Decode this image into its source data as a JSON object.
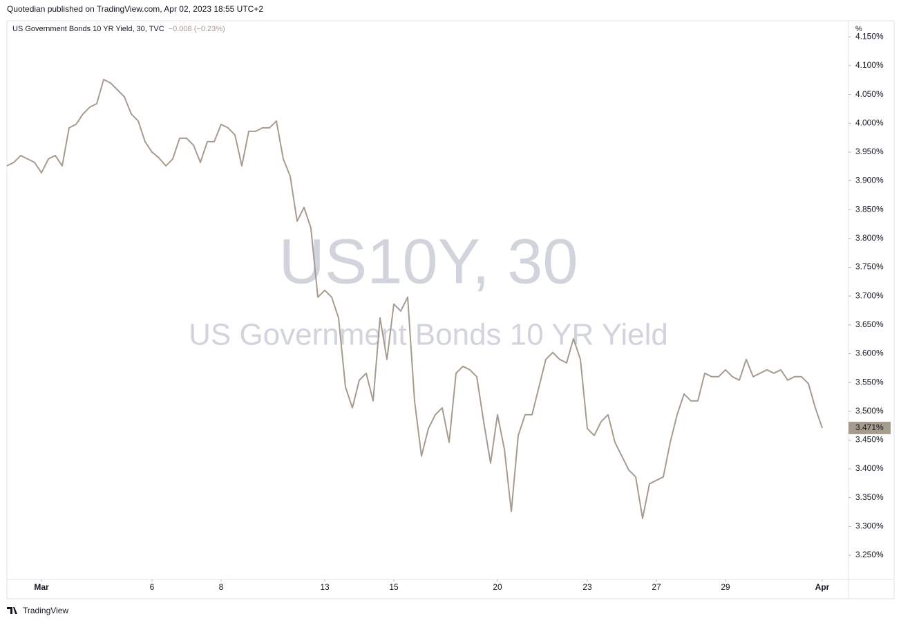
{
  "publisher_line": "Quotedian published on TradingView.com, Apr 02, 2023 18:55 UTC+2",
  "footer_brand": "TradingView",
  "chart_data": {
    "type": "line",
    "title": "US Government Bonds 10 YR Yield, 30, TVC",
    "change": "−0.008 (−0.23%)",
    "watermark_symbol": "US10Y, 30",
    "watermark_name": "US Government Bonds 10 YR Yield",
    "y_unit": "%",
    "last_value_label": "3.471%",
    "x": [
      0,
      1,
      2,
      3,
      4,
      5,
      6,
      7,
      8,
      9,
      10,
      11,
      12,
      13,
      14,
      15,
      16,
      17,
      18,
      19,
      20,
      21,
      22,
      23,
      24,
      25,
      26,
      27,
      28,
      29,
      30,
      31,
      32,
      33,
      34,
      35,
      36,
      37,
      38,
      39,
      40,
      41,
      42,
      43,
      44,
      45,
      46,
      47,
      48,
      49,
      50,
      51,
      52,
      53,
      54,
      55,
      56,
      57,
      58,
      59,
      60,
      61,
      62,
      63,
      64,
      65,
      66,
      67,
      68,
      69,
      70,
      71,
      72,
      73,
      74,
      75,
      76,
      77,
      78,
      79,
      80,
      81,
      82,
      83,
      84,
      85,
      86,
      87,
      88,
      89,
      90,
      91,
      92,
      93,
      94,
      95,
      96,
      97,
      98,
      99,
      100,
      101,
      102,
      103,
      104,
      105,
      106,
      107,
      108,
      109,
      110,
      111,
      112,
      113,
      114,
      115,
      116,
      117,
      118
    ],
    "series": [
      {
        "name": "US10Y",
        "color": "#a59b8f",
        "values": [
          3.926,
          3.932,
          3.944,
          3.938,
          3.932,
          3.914,
          3.938,
          3.944,
          3.926,
          3.992,
          3.998,
          4.016,
          4.028,
          4.034,
          4.076,
          4.07,
          4.058,
          4.046,
          4.016,
          4.004,
          3.968,
          3.95,
          3.94,
          3.926,
          3.938,
          3.974,
          3.974,
          3.962,
          3.932,
          3.968,
          3.968,
          3.998,
          3.992,
          3.98,
          3.926,
          3.986,
          3.986,
          3.992,
          3.992,
          4.004,
          3.938,
          3.908,
          3.83,
          3.854,
          3.818,
          3.698,
          3.71,
          3.698,
          3.662,
          3.542,
          3.506,
          3.554,
          3.566,
          3.518,
          3.662,
          3.59,
          3.686,
          3.674,
          3.698,
          3.518,
          3.422,
          3.47,
          3.494,
          3.506,
          3.446,
          3.566,
          3.578,
          3.572,
          3.56,
          3.482,
          3.41,
          3.494,
          3.434,
          3.326,
          3.458,
          3.494,
          3.494,
          3.542,
          3.59,
          3.602,
          3.59,
          3.584,
          3.626,
          3.59,
          3.47,
          3.458,
          3.482,
          3.494,
          3.446,
          3.422,
          3.398,
          3.386,
          3.314,
          3.374,
          3.38,
          3.386,
          3.446,
          3.494,
          3.53,
          3.518,
          3.518,
          3.566,
          3.56,
          3.56,
          3.572,
          3.56,
          3.554,
          3.59,
          3.56,
          3.566,
          3.572,
          3.566,
          3.572,
          3.554,
          3.56,
          3.56,
          3.548,
          3.506,
          3.471
        ]
      }
    ],
    "xlim": [
      0,
      121.8
    ],
    "xticks": [
      {
        "value": 5,
        "label": "Mar"
      },
      {
        "value": 21,
        "label": "6"
      },
      {
        "value": 31,
        "label": "8"
      },
      {
        "value": 46,
        "label": "13"
      },
      {
        "value": 56,
        "label": "15"
      },
      {
        "value": 71,
        "label": "20"
      },
      {
        "value": 84,
        "label": "23"
      },
      {
        "value": 94,
        "label": "27"
      },
      {
        "value": 104,
        "label": "29"
      },
      {
        "value": 118,
        "label": "Apr"
      }
    ],
    "ylim": [
      3.208,
      4.178
    ],
    "yticks": [
      {
        "value": 3.25,
        "label": "3.250%"
      },
      {
        "value": 3.3,
        "label": "3.300%"
      },
      {
        "value": 3.35,
        "label": "3.350%"
      },
      {
        "value": 3.4,
        "label": "3.400%"
      },
      {
        "value": 3.45,
        "label": "3.450%"
      },
      {
        "value": 3.5,
        "label": "3.500%"
      },
      {
        "value": 3.55,
        "label": "3.550%"
      },
      {
        "value": 3.6,
        "label": "3.600%"
      },
      {
        "value": 3.65,
        "label": "3.650%"
      },
      {
        "value": 3.7,
        "label": "3.700%"
      },
      {
        "value": 3.75,
        "label": "3.750%"
      },
      {
        "value": 3.8,
        "label": "3.800%"
      },
      {
        "value": 3.85,
        "label": "3.850%"
      },
      {
        "value": 3.9,
        "label": "3.900%"
      },
      {
        "value": 3.95,
        "label": "3.950%"
      },
      {
        "value": 4.0,
        "label": "4.000%"
      },
      {
        "value": 4.05,
        "label": "4.050%"
      },
      {
        "value": 4.1,
        "label": "4.100%"
      },
      {
        "value": 4.15,
        "label": "4.150%"
      }
    ],
    "grid": false
  }
}
